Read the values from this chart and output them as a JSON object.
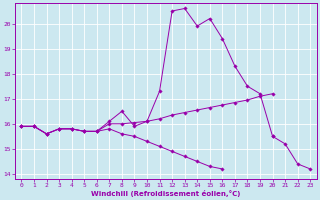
{
  "xlabel": "Windchill (Refroidissement éolien,°C)",
  "background_color": "#cce8f0",
  "grid_color": "#ffffff",
  "line_color": "#9900aa",
  "x_values": [
    0,
    1,
    2,
    3,
    4,
    5,
    6,
    7,
    8,
    9,
    10,
    11,
    12,
    13,
    14,
    15,
    16,
    17,
    18,
    19,
    20,
    21,
    22,
    23
  ],
  "curve1": [
    15.9,
    15.9,
    15.6,
    15.8,
    15.8,
    15.7,
    15.7,
    16.1,
    16.5,
    15.9,
    16.1,
    17.3,
    20.5,
    20.6,
    19.9,
    20.2,
    19.4,
    18.3,
    17.5,
    17.2,
    15.5,
    null,
    null,
    null
  ],
  "curve2": [
    15.9,
    15.9,
    15.6,
    15.8,
    15.8,
    15.7,
    15.7,
    16.0,
    16.0,
    16.05,
    16.1,
    16.2,
    16.35,
    16.45,
    16.55,
    16.65,
    16.75,
    16.85,
    16.95,
    17.1,
    17.2,
    null,
    null,
    null
  ],
  "curve3": [
    15.9,
    15.9,
    15.6,
    15.8,
    15.8,
    15.7,
    15.7,
    15.8,
    15.6,
    15.5,
    15.3,
    15.1,
    14.9,
    14.7,
    14.5,
    14.3,
    14.2,
    null,
    null,
    null,
    null,
    null,
    null,
    null
  ],
  "curve4": [
    null,
    null,
    null,
    null,
    null,
    null,
    null,
    null,
    null,
    null,
    null,
    null,
    null,
    null,
    null,
    null,
    null,
    null,
    null,
    null,
    15.5,
    15.2,
    14.4,
    14.2
  ],
  "xlim": [
    -0.5,
    23.5
  ],
  "ylim": [
    13.8,
    20.8
  ],
  "yticks": [
    14,
    15,
    16,
    17,
    18,
    19,
    20
  ],
  "xticks": [
    0,
    1,
    2,
    3,
    4,
    5,
    6,
    7,
    8,
    9,
    10,
    11,
    12,
    13,
    14,
    15,
    16,
    17,
    18,
    19,
    20,
    21,
    22,
    23
  ],
  "tick_fontsize": 4.5,
  "xlabel_fontsize": 5.0,
  "marker_size": 1.8,
  "line_width": 0.7
}
